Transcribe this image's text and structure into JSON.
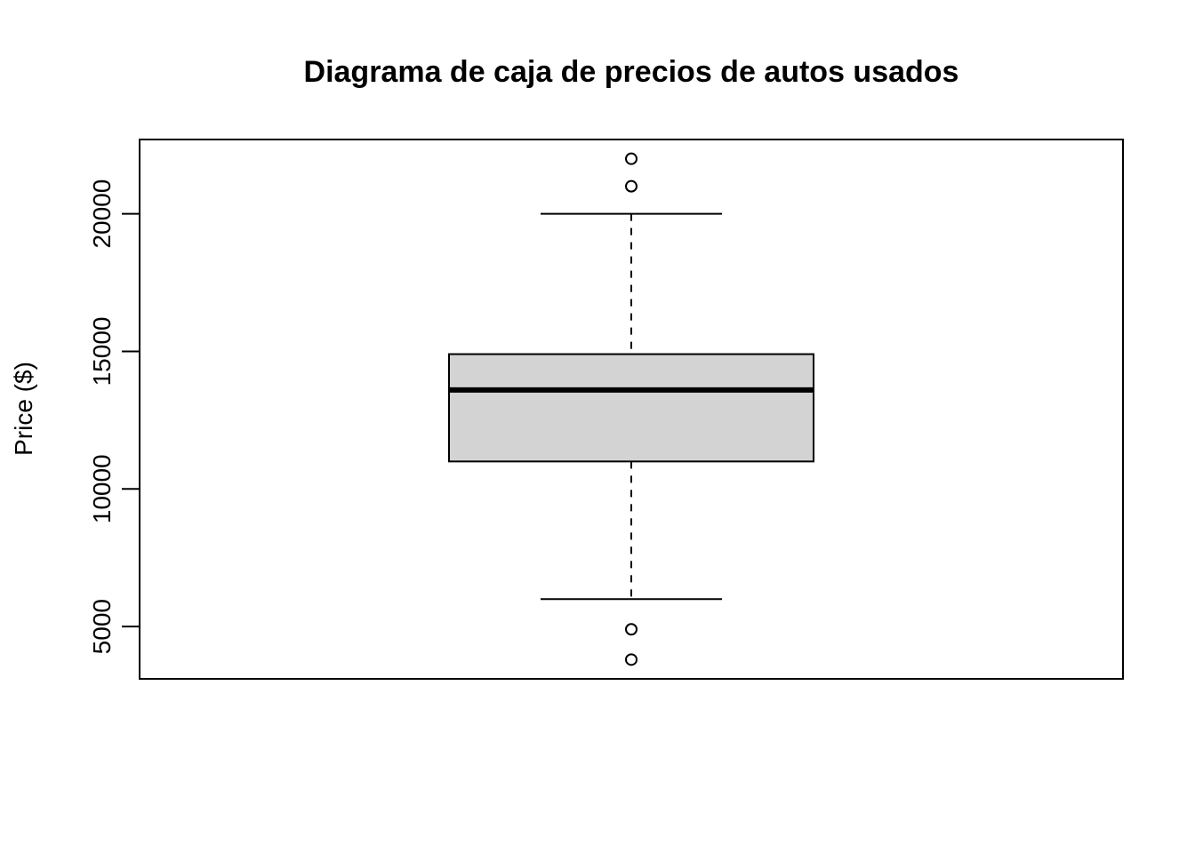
{
  "chart_data": {
    "type": "boxplot",
    "title": "Diagrama de caja de precios de autos usados",
    "xlabel": "",
    "ylabel": "Price ($)",
    "ylim": [
      3100,
      22700
    ],
    "yticks": [
      5000,
      10000,
      15000,
      20000
    ],
    "box": {
      "lower_whisker": 6000,
      "q1": 11000,
      "median": 13600,
      "q3": 14900,
      "upper_whisker": 20000
    },
    "outliers": [
      3800,
      4900,
      21000,
      22000
    ],
    "colors": {
      "box_fill": "#d3d3d3",
      "stroke": "#000000"
    }
  }
}
